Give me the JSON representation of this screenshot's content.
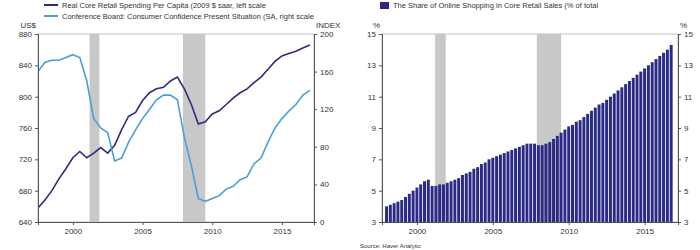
{
  "chart_data": [
    {
      "type": "line",
      "x": [
        1997.5,
        1998,
        1998.5,
        1999,
        1999.5,
        2000,
        2000.5,
        2001,
        2001.5,
        2002,
        2002.5,
        2003,
        2003.5,
        2004,
        2004.5,
        2005,
        2005.5,
        2006,
        2006.5,
        2007,
        2007.5,
        2008,
        2008.5,
        2009,
        2009.5,
        2010,
        2010.5,
        2011,
        2011.5,
        2012,
        2012.5,
        2013,
        2013.5,
        2014,
        2014.5,
        2015,
        2015.5,
        2016,
        2016.5,
        2017
      ],
      "series": [
        {
          "name": "Real Core Retail Spending Per Capita (2009 $ saar, left scale",
          "color": "#2e2a7e",
          "values": [
            658,
            668,
            680,
            695,
            708,
            722,
            730,
            722,
            728,
            735,
            728,
            738,
            758,
            775,
            780,
            795,
            805,
            810,
            812,
            820,
            825,
            810,
            790,
            765,
            768,
            778,
            782,
            790,
            798,
            805,
            810,
            818,
            825,
            835,
            845,
            852,
            855,
            858,
            862,
            866
          ]
        },
        {
          "name": "Conference Board: Consumer Confidence Present Situation (SA, right scale",
          "color": "#4a9fd8",
          "axis": "y2",
          "values": [
            160,
            170,
            172,
            172,
            175,
            178,
            175,
            150,
            110,
            100,
            95,
            65,
            68,
            85,
            98,
            110,
            120,
            130,
            135,
            135,
            130,
            90,
            60,
            25,
            22,
            25,
            28,
            35,
            38,
            45,
            48,
            62,
            68,
            85,
            100,
            110,
            118,
            125,
            135,
            140
          ]
        }
      ],
      "xlim": [
        1997.5,
        2017.3
      ],
      "xticks": [
        2000,
        2005,
        2010,
        2015
      ],
      "ylim": [
        640,
        880
      ],
      "yticks": [
        640,
        680,
        720,
        760,
        800,
        840,
        880
      ],
      "y2lim": [
        0,
        200
      ],
      "y2ticks": [
        0,
        40,
        80,
        120,
        160,
        200
      ],
      "ylabel": "US$",
      "y2label": "INDEX",
      "recessions": [
        [
          2001.2,
          2001.9
        ],
        [
          2007.9,
          2009.5
        ]
      ],
      "legend": "top",
      "grid": false
    },
    {
      "type": "bar",
      "x": [
        1998,
        1998.25,
        1998.5,
        1998.75,
        1999,
        1999.25,
        1999.5,
        1999.75,
        2000,
        2000.25,
        2000.5,
        2000.75,
        2001,
        2001.25,
        2001.5,
        2001.75,
        2002,
        2002.25,
        2002.5,
        2002.75,
        2003,
        2003.25,
        2003.5,
        2003.75,
        2004,
        2004.25,
        2004.5,
        2004.75,
        2005,
        2005.25,
        2005.5,
        2005.75,
        2006,
        2006.25,
        2006.5,
        2006.75,
        2007,
        2007.25,
        2007.5,
        2007.75,
        2008,
        2008.25,
        2008.5,
        2008.75,
        2009,
        2009.25,
        2009.5,
        2009.75,
        2010,
        2010.25,
        2010.5,
        2010.75,
        2011,
        2011.25,
        2011.5,
        2011.75,
        2012,
        2012.25,
        2012.5,
        2012.75,
        2013,
        2013.25,
        2013.5,
        2013.75,
        2014,
        2014.25,
        2014.5,
        2014.75,
        2015,
        2015.25,
        2015.5,
        2015.75,
        2016,
        2016.25,
        2016.5,
        2016.75
      ],
      "series": [
        {
          "name": "The Share of Online Shopping in Core Retail Sales (% of total",
          "color": "#2b2a84",
          "values": [
            4.0,
            4.1,
            4.2,
            4.3,
            4.4,
            4.6,
            4.8,
            5.0,
            5.2,
            5.4,
            5.6,
            5.7,
            5.3,
            5.3,
            5.4,
            5.4,
            5.5,
            5.6,
            5.7,
            5.8,
            6.0,
            6.1,
            6.2,
            6.4,
            6.5,
            6.7,
            6.8,
            7.0,
            7.1,
            7.2,
            7.3,
            7.4,
            7.5,
            7.6,
            7.7,
            7.8,
            7.9,
            8.0,
            8.0,
            8.0,
            7.9,
            7.9,
            8.0,
            8.1,
            8.3,
            8.5,
            8.7,
            8.9,
            9.1,
            9.2,
            9.4,
            9.5,
            9.7,
            9.9,
            10.1,
            10.3,
            10.5,
            10.6,
            10.8,
            11.0,
            11.2,
            11.4,
            11.6,
            11.8,
            12.0,
            12.2,
            12.4,
            12.6,
            12.8,
            13.0,
            13.2,
            13.4,
            13.6,
            13.8,
            14.0,
            14.3
          ]
        }
      ],
      "xlim": [
        1997.7,
        2017.2
      ],
      "xticks": [
        2000,
        2005,
        2010,
        2015
      ],
      "ylim": [
        3,
        15
      ],
      "yticks": [
        3,
        5,
        7,
        9,
        11,
        13,
        15
      ],
      "y2lim": [
        3,
        15
      ],
      "y2ticks": [
        3,
        5,
        7,
        9,
        11,
        13,
        15
      ],
      "ylabel": "%",
      "y2label": "%",
      "recessions": [
        [
          2001.2,
          2001.9
        ],
        [
          2007.9,
          2009.5
        ]
      ],
      "source": "Source:  Haver Analytic",
      "legend": "top",
      "grid": false
    }
  ]
}
